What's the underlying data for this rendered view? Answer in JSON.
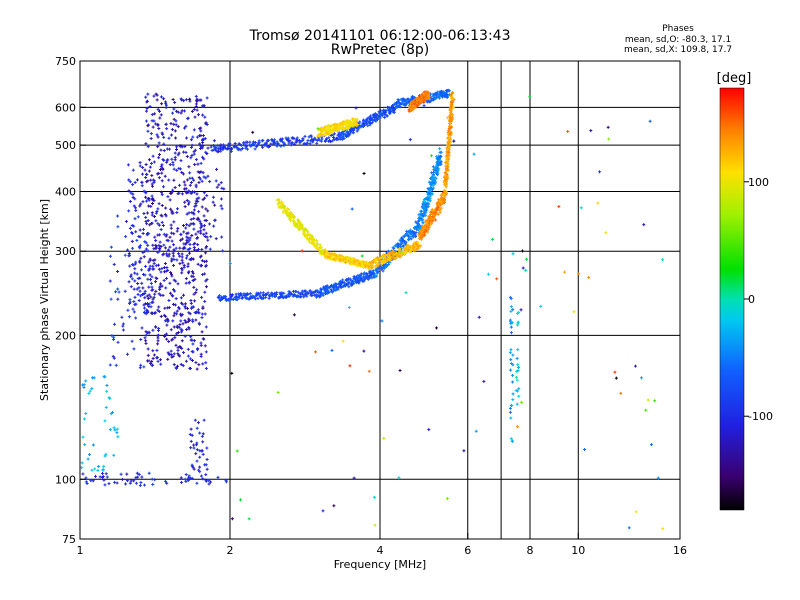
{
  "header": {
    "title_line1": "Tromsø 20141101 06:12:00-06:13:43",
    "title_line2": "RwPretec (8p)",
    "stats_title": "Phases",
    "stats_o": "mean, sd,O: -80.3, 17.1",
    "stats_x": "mean, sd,X: 109.8, 17.7"
  },
  "chart_data": {
    "type": "scatter",
    "xlabel": "Frequency [MHz]",
    "ylabel": "Stationary phase Virtual Height [km]",
    "xscale": "log",
    "yscale": "log",
    "xlim": [
      1,
      16
    ],
    "ylim": [
      75,
      750
    ],
    "xticks": [
      1,
      2,
      4,
      6,
      8,
      10,
      16
    ],
    "xtick_labels": [
      "1",
      "2",
      "4",
      "6",
      "8",
      "10",
      "16"
    ],
    "xgrid": [
      2,
      4,
      6,
      7,
      8,
      10
    ],
    "yticks": [
      75,
      100,
      200,
      300,
      400,
      500,
      600,
      750
    ],
    "ytick_labels": [
      "75",
      "100",
      "200",
      "300",
      "400",
      "500",
      "600",
      "750"
    ],
    "ygrid": [
      100,
      200,
      300,
      400,
      500,
      600
    ],
    "colorbar": {
      "label": "[deg]",
      "min": -180,
      "max": 180,
      "ticks": [
        100,
        0,
        -100
      ],
      "tick_labels": [
        "100",
        "0",
        "-100"
      ]
    },
    "traces": [
      {
        "fmin": 1.85,
        "fmax": 3.3,
        "h0": 490,
        "h1": 520,
        "phase": -90,
        "dh": 0.02
      },
      {
        "fmin": 3.3,
        "fmax": 4.3,
        "h0": 520,
        "h1": 600,
        "phase": -75,
        "dh": 0.02
      },
      {
        "fmin": 4.3,
        "fmax": 5.5,
        "h0": 610,
        "h1": 640,
        "phase": -60,
        "dh": 0.02
      },
      {
        "fmin": 1.9,
        "fmax": 3.0,
        "h0": 240,
        "h1": 245,
        "phase": -80,
        "dh": 0.015
      },
      {
        "fmin": 3.0,
        "fmax": 3.9,
        "h0": 245,
        "h1": 270,
        "phase": -70,
        "dh": 0.02
      },
      {
        "fmin": 3.9,
        "fmax": 4.8,
        "h0": 270,
        "h1": 340,
        "phase": -55,
        "dh": 0.03
      },
      {
        "fmin": 4.8,
        "fmax": 5.3,
        "h0": 340,
        "h1": 480,
        "phase": -45,
        "dh": 0.04
      },
      {
        "fmin": 2.5,
        "fmax": 3.1,
        "h0": 380,
        "h1": 295,
        "phase": 100,
        "dh": 0.02
      },
      {
        "fmin": 3.1,
        "fmax": 3.8,
        "h0": 295,
        "h1": 280,
        "phase": 115,
        "dh": 0.015
      },
      {
        "fmin": 3.8,
        "fmax": 4.8,
        "h0": 280,
        "h1": 310,
        "phase": 125,
        "dh": 0.02
      },
      {
        "fmin": 4.8,
        "fmax": 5.4,
        "h0": 320,
        "h1": 390,
        "phase": 140,
        "dh": 0.03
      },
      {
        "fmin": 5.4,
        "fmax": 5.6,
        "h0": 400,
        "h1": 640,
        "phase": 135,
        "dh": 0.03
      },
      {
        "fmin": 4.6,
        "fmax": 5.0,
        "h0": 600,
        "h1": 640,
        "phase": 145,
        "dh": 0.02
      },
      {
        "fmin": 3.0,
        "fmax": 3.6,
        "h0": 530,
        "h1": 560,
        "phase": 110,
        "dh": 0.02
      }
    ],
    "clouds": [
      {
        "fmin": 1.35,
        "fmax": 1.8,
        "hmin": 170,
        "hmax": 640,
        "phase": -120,
        "n": 700
      },
      {
        "fmin": 1.25,
        "fmax": 1.4,
        "hmin": 220,
        "hmax": 460,
        "phase": -110,
        "n": 120
      },
      {
        "fmin": 1.15,
        "fmax": 1.35,
        "hmin": 170,
        "hmax": 360,
        "phase": -95,
        "n": 70
      },
      {
        "fmin": 1.6,
        "fmax": 1.95,
        "hmin": 300,
        "hmax": 520,
        "phase": -115,
        "n": 80
      },
      {
        "fmin": 1.0,
        "fmax": 1.2,
        "hmin": 100,
        "hmax": 170,
        "phase": -25,
        "n": 45
      },
      {
        "fmin": 1.65,
        "fmax": 1.8,
        "hmin": 100,
        "hmax": 135,
        "phase": -110,
        "n": 40
      },
      {
        "fmin": 1.0,
        "fmax": 2.0,
        "hmin": 97,
        "hmax": 103,
        "phase": -105,
        "n": 60
      },
      {
        "fmin": 7.3,
        "fmax": 7.4,
        "hmin": 120,
        "hmax": 260,
        "phase": -35,
        "n": 30
      },
      {
        "fmin": 7.5,
        "fmax": 7.6,
        "hmin": 140,
        "hmax": 260,
        "phase": -20,
        "n": 18
      },
      {
        "fmin": 2.0,
        "fmax": 15.0,
        "hmin": 78,
        "hmax": 640,
        "phase": 0,
        "n": 90,
        "randphase": true
      }
    ]
  }
}
